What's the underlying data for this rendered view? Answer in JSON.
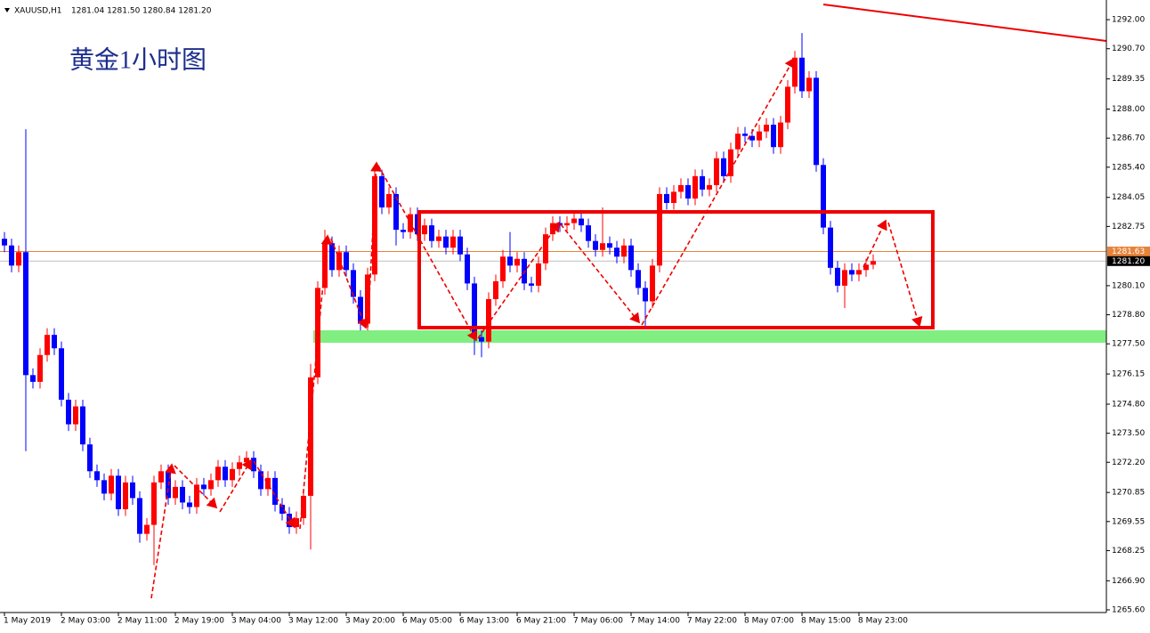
{
  "chart_data": {
    "type": "candlestick",
    "symbol": "XAUUSD,H1",
    "ohlc_text": "1281.04 1281.50 1280.84 1281.20",
    "annotation": "黄金1小时图",
    "up_color": "#ff0000",
    "down_color": "#0000ff",
    "categories": [
      "1 May 2019",
      null,
      null,
      null,
      null,
      null,
      null,
      null,
      "2 May 03:00",
      null,
      null,
      null,
      null,
      null,
      null,
      null,
      "2 May 11:00",
      null,
      null,
      null,
      null,
      null,
      null,
      null,
      "2 May 19:00",
      null,
      null,
      null,
      null,
      null,
      null,
      null,
      "3 May 04:00",
      null,
      null,
      null,
      null,
      null,
      null,
      null,
      "3 May 12:00",
      null,
      null,
      null,
      null,
      null,
      null,
      null,
      "3 May 20:00",
      null,
      null,
      null,
      null,
      null,
      null,
      null,
      "6 May 05:00",
      null,
      null,
      null,
      null,
      null,
      null,
      null,
      "6 May 13:00",
      null,
      null,
      null,
      null,
      null,
      null,
      null,
      "6 May 21:00",
      null,
      null,
      null,
      null,
      null,
      null,
      null,
      "7 May 06:00",
      null,
      null,
      null,
      null,
      null,
      null,
      null,
      "7 May 14:00",
      null,
      null,
      null,
      null,
      null,
      null,
      null,
      "7 May 22:00",
      null,
      null,
      null,
      null,
      null,
      null,
      null,
      "8 May 07:00",
      null,
      null,
      null,
      null,
      null,
      null,
      null,
      "8 May 15:00",
      null,
      null,
      null,
      null,
      null,
      null,
      null,
      "8 May 23:00",
      null,
      null
    ],
    "open": [
      1282.2,
      1281.9,
      1281.0,
      1281.6,
      1276.1,
      1275.8,
      1277.0,
      1277.9,
      1277.3,
      1275.0,
      1273.9,
      1274.7,
      1273.0,
      1271.8,
      1271.4,
      1270.8,
      1271.6,
      1270.1,
      1271.3,
      1270.6,
      1269.0,
      1269.4,
      1271.3,
      1271.8,
      1270.6,
      1271.1,
      1270.4,
      1270.2,
      1271.2,
      1271.0,
      1271.4,
      1272.0,
      1271.4,
      1271.9,
      1272.2,
      1272.4,
      1271.8,
      1271.0,
      1271.5,
      1270.3,
      1269.9,
      1269.3,
      1269.7,
      1270.7,
      1276.0,
      1280.0,
      1282.0,
      1280.8,
      1281.6,
      1280.8,
      1279.6,
      1278.4,
      1280.6,
      1285.0,
      1283.6,
      1284.2,
      1282.6,
      1282.5,
      1283.3,
      1282.4,
      1282.8,
      1282.1,
      1282.3,
      1281.8,
      1282.3,
      1281.5,
      1280.2,
      1277.8,
      1277.6,
      1279.5,
      1280.3,
      1281.4,
      1281.0,
      1281.3,
      1280.2,
      1280.1,
      1281.1,
      1282.4,
      1282.9,
      1282.8,
      1282.9,
      1283.1,
      1282.8,
      1282.1,
      1281.7,
      1282.0,
      1281.8,
      1281.4,
      1281.9,
      1280.8,
      1280.0,
      1279.4,
      1281.0,
      1284.2,
      1283.8,
      1284.3,
      1284.6,
      1284.0,
      1285.0,
      1284.4,
      1284.6,
      1285.8,
      1285.0,
      1286.2,
      1286.9,
      1286.8,
      1286.6,
      1287.0,
      1287.3,
      1286.3,
      1287.4,
      1289.0,
      1290.3,
      1288.8,
      1289.4,
      1285.5,
      1282.7,
      1280.9,
      1280.1,
      1280.8,
      1280.6,
      1280.8,
      1281.04
    ],
    "high": [
      1282.5,
      1282.2,
      1281.9,
      1287.1,
      1276.4,
      1277.3,
      1278.2,
      1278.2,
      1277.6,
      1275.3,
      1275.0,
      1275.0,
      1273.3,
      1272.1,
      1271.7,
      1271.9,
      1271.9,
      1271.6,
      1271.6,
      1270.9,
      1269.7,
      1271.6,
      1272.1,
      1272.1,
      1271.4,
      1271.4,
      1270.7,
      1271.5,
      1271.5,
      1271.7,
      1272.3,
      1272.3,
      1272.2,
      1272.5,
      1272.7,
      1272.7,
      1272.1,
      1271.8,
      1271.8,
      1270.6,
      1270.2,
      1270.0,
      1271.0,
      1276.6,
      1280.3,
      1282.6,
      1282.3,
      1281.9,
      1281.9,
      1281.1,
      1279.9,
      1280.9,
      1285.4,
      1285.3,
      1284.5,
      1284.5,
      1282.9,
      1283.6,
      1283.6,
      1283.1,
      1283.1,
      1282.6,
      1282.6,
      1282.6,
      1282.6,
      1281.8,
      1280.5,
      1278.1,
      1279.8,
      1280.6,
      1281.7,
      1282.5,
      1281.6,
      1281.6,
      1280.5,
      1281.4,
      1282.7,
      1283.2,
      1283.2,
      1283.2,
      1283.4,
      1283.4,
      1283.1,
      1282.4,
      1283.6,
      1282.3,
      1282.1,
      1282.2,
      1282.2,
      1281.1,
      1280.3,
      1281.3,
      1284.5,
      1284.5,
      1284.6,
      1284.9,
      1284.9,
      1285.3,
      1285.3,
      1284.9,
      1286.1,
      1286.1,
      1286.5,
      1287.2,
      1287.2,
      1287.1,
      1287.3,
      1287.6,
      1287.6,
      1287.7,
      1289.3,
      1290.6,
      1291.4,
      1289.7,
      1289.7,
      1285.8,
      1283.0,
      1281.2,
      1281.1,
      1281.1,
      1281.1,
      1281.3,
      1281.5
    ],
    "low": [
      1281.6,
      1280.7,
      1280.7,
      1272.7,
      1275.5,
      1275.5,
      1276.7,
      1277.0,
      1274.7,
      1273.6,
      1273.6,
      1272.7,
      1271.5,
      1271.1,
      1270.5,
      1270.5,
      1269.8,
      1269.8,
      1270.3,
      1268.6,
      1268.7,
      1267.6,
      1271.0,
      1270.3,
      1270.3,
      1270.1,
      1269.9,
      1269.9,
      1270.7,
      1270.7,
      1271.1,
      1271.1,
      1271.1,
      1271.6,
      1271.9,
      1271.5,
      1270.7,
      1270.7,
      1270.0,
      1269.6,
      1269.0,
      1269.0,
      1269.4,
      1268.3,
      1275.7,
      1279.7,
      1280.5,
      1280.5,
      1280.5,
      1279.3,
      1278.1,
      1278.1,
      1280.3,
      1283.3,
      1283.3,
      1281.9,
      1282.2,
      1282.2,
      1282.1,
      1282.1,
      1281.8,
      1281.8,
      1281.5,
      1281.5,
      1281.2,
      1279.9,
      1277.0,
      1276.9,
      1277.3,
      1279.2,
      1280.0,
      1280.7,
      1280.7,
      1279.9,
      1279.8,
      1279.8,
      1280.8,
      1282.1,
      1282.5,
      1282.5,
      1282.6,
      1282.5,
      1281.8,
      1281.4,
      1281.4,
      1281.5,
      1281.1,
      1281.1,
      1280.5,
      1279.7,
      1278.3,
      1279.1,
      1280.7,
      1283.5,
      1283.5,
      1284.0,
      1283.7,
      1283.7,
      1284.1,
      1284.1,
      1284.3,
      1284.7,
      1284.7,
      1285.9,
      1286.5,
      1286.3,
      1286.3,
      1286.7,
      1286.0,
      1286.0,
      1287.1,
      1288.7,
      1288.5,
      1288.5,
      1285.2,
      1282.4,
      1280.6,
      1279.8,
      1279.1,
      1280.3,
      1280.3,
      1280.5,
      1280.84
    ],
    "close": [
      1281.9,
      1281.0,
      1281.6,
      1276.1,
      1275.8,
      1277.0,
      1277.9,
      1277.3,
      1275.0,
      1273.9,
      1274.7,
      1273.0,
      1271.8,
      1271.4,
      1270.8,
      1271.6,
      1270.1,
      1271.3,
      1270.6,
      1269.0,
      1269.4,
      1271.3,
      1271.8,
      1270.6,
      1271.1,
      1270.4,
      1270.2,
      1271.2,
      1271.0,
      1271.4,
      1272.0,
      1271.4,
      1271.9,
      1272.2,
      1272.4,
      1271.8,
      1271.0,
      1271.5,
      1270.3,
      1269.9,
      1269.3,
      1269.7,
      1270.7,
      1276.0,
      1280.0,
      1282.0,
      1280.8,
      1281.6,
      1280.8,
      1279.6,
      1278.4,
      1280.6,
      1285.0,
      1283.6,
      1284.2,
      1282.6,
      1282.5,
      1283.3,
      1282.4,
      1282.8,
      1282.1,
      1282.3,
      1281.8,
      1282.3,
      1281.5,
      1280.2,
      1277.8,
      1277.6,
      1279.5,
      1280.3,
      1281.4,
      1281.0,
      1281.3,
      1280.2,
      1280.1,
      1281.1,
      1282.4,
      1282.9,
      1282.8,
      1282.9,
      1283.1,
      1282.8,
      1282.1,
      1281.7,
      1282.0,
      1281.8,
      1281.4,
      1281.9,
      1280.8,
      1280.0,
      1279.4,
      1281.0,
      1284.2,
      1283.8,
      1284.3,
      1284.6,
      1284.0,
      1285.0,
      1284.4,
      1284.6,
      1285.8,
      1285.0,
      1286.2,
      1286.9,
      1286.8,
      1286.6,
      1287.0,
      1287.3,
      1286.3,
      1287.4,
      1289.0,
      1290.3,
      1288.8,
      1289.4,
      1285.5,
      1282.7,
      1280.9,
      1280.1,
      1280.8,
      1280.6,
      1280.8,
      1281.04,
      1281.2
    ],
    "ylim": [
      1265.48,
      1292.88
    ],
    "yticks": [
      {
        "value": 1292.0,
        "label": "1292.00"
      },
      {
        "value": 1290.7,
        "label": "1290.70"
      },
      {
        "value": 1289.35,
        "label": "1289.35"
      },
      {
        "value": 1288.0,
        "label": "1288.00"
      },
      {
        "value": 1286.7,
        "label": "1286.70"
      },
      {
        "value": 1285.4,
        "label": "1285.40"
      },
      {
        "value": 1284.05,
        "label": "1284.05"
      },
      {
        "value": 1282.75,
        "label": "1282.75"
      },
      {
        "value": 1280.1,
        "label": "1280.10"
      },
      {
        "value": 1278.8,
        "label": "1278.80"
      },
      {
        "value": 1277.5,
        "label": "1277.50"
      },
      {
        "value": 1276.15,
        "label": "1276.15"
      },
      {
        "value": 1274.8,
        "label": "1274.80"
      },
      {
        "value": 1273.5,
        "label": "1273.50"
      },
      {
        "value": 1272.2,
        "label": "1272.20"
      },
      {
        "value": 1270.85,
        "label": "1270.85"
      },
      {
        "value": 1269.55,
        "label": "1269.55"
      },
      {
        "value": 1268.25,
        "label": "1268.25"
      },
      {
        "value": 1266.9,
        "label": "1266.90"
      },
      {
        "value": 1265.6,
        "label": "1265.60"
      }
    ],
    "price_lines": [
      {
        "value": 1281.63,
        "label": "1281.63",
        "color": "#e8833a"
      },
      {
        "value": 1281.2,
        "label": "1281.20",
        "color": "#c0c0c0"
      }
    ]
  }
}
